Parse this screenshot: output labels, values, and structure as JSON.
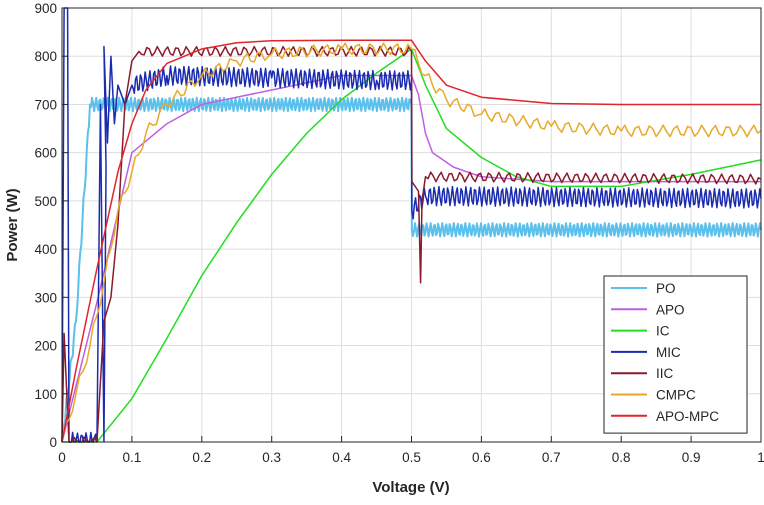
{
  "chart_data": {
    "type": "line",
    "title": "",
    "xlabel": "Voltage (V)",
    "ylabel": "Power (W)",
    "xlim": [
      0,
      1
    ],
    "ylim": [
      0,
      900
    ],
    "x_ticks": [
      "0",
      "0.1",
      "0.2",
      "0.3",
      "0.4",
      "0.5",
      "0.6",
      "0.7",
      "0.8",
      "0.9",
      "1"
    ],
    "y_ticks": [
      "0",
      "100",
      "200",
      "300",
      "400",
      "500",
      "600",
      "700",
      "800",
      "900"
    ],
    "grid": true,
    "legend_position": "bottom-right",
    "series": [
      {
        "name": "PO",
        "color": "#5bc0eb",
        "oscillation": {
          "amplitude": 14,
          "period": 0.006
        },
        "points": [
          [
            0,
            0
          ],
          [
            0.02,
            250
          ],
          [
            0.04,
            700
          ],
          [
            0.5,
            700
          ],
          [
            0.5005,
            440
          ],
          [
            1,
            440
          ]
        ]
      },
      {
        "name": "APO",
        "color": "#bf5fe0",
        "points": [
          [
            0,
            0
          ],
          [
            0.05,
            290
          ],
          [
            0.1,
            600
          ],
          [
            0.15,
            660
          ],
          [
            0.2,
            700
          ],
          [
            0.3,
            730
          ],
          [
            0.4,
            760
          ],
          [
            0.5,
            760
          ],
          [
            0.51,
            720
          ],
          [
            0.52,
            640
          ],
          [
            0.53,
            600
          ],
          [
            0.56,
            570
          ],
          [
            0.6,
            550
          ],
          [
            0.7,
            540
          ],
          [
            1,
            540
          ]
        ]
      },
      {
        "name": "IC",
        "color": "#22dd22",
        "points": [
          [
            0,
            0
          ],
          [
            0.05,
            0
          ],
          [
            0.1,
            90
          ],
          [
            0.15,
            215
          ],
          [
            0.2,
            345
          ],
          [
            0.25,
            455
          ],
          [
            0.3,
            555
          ],
          [
            0.35,
            640
          ],
          [
            0.4,
            710
          ],
          [
            0.45,
            765
          ],
          [
            0.5,
            815
          ],
          [
            0.52,
            740
          ],
          [
            0.55,
            650
          ],
          [
            0.6,
            590
          ],
          [
            0.65,
            550
          ],
          [
            0.7,
            530
          ],
          [
            0.8,
            530
          ],
          [
            0.9,
            555
          ],
          [
            1,
            585
          ]
        ]
      },
      {
        "name": "MIC",
        "color": "#1a2bb0",
        "oscillation": {
          "amplitude": 20,
          "period": 0.007
        },
        "points": [
          [
            0,
            0
          ],
          [
            0.003,
            900
          ],
          [
            0.008,
            900
          ],
          [
            0.01,
            0
          ],
          [
            0.05,
            0
          ],
          [
            0.055,
            700
          ],
          [
            0.06,
            0
          ],
          [
            0.063,
            570
          ],
          [
            0.06,
            820
          ],
          [
            0.065,
            620
          ],
          [
            0.07,
            800
          ],
          [
            0.075,
            660
          ],
          [
            0.08,
            740
          ],
          [
            0.09,
            700
          ],
          [
            0.1,
            740
          ],
          [
            0.15,
            760
          ],
          [
            0.3,
            755
          ],
          [
            0.45,
            750
          ],
          [
            0.5,
            750
          ],
          [
            0.5005,
            480
          ],
          [
            0.52,
            510
          ],
          [
            1,
            505
          ]
        ]
      },
      {
        "name": "IIC",
        "color": "#8b1a2c",
        "oscillation": {
          "amplitude": 10,
          "period": 0.015
        },
        "points": [
          [
            0,
            0
          ],
          [
            0.003,
            225
          ],
          [
            0.01,
            0
          ],
          [
            0.05,
            0
          ],
          [
            0.06,
            250
          ],
          [
            0.07,
            300
          ],
          [
            0.08,
            450
          ],
          [
            0.09,
            700
          ],
          [
            0.1,
            790
          ],
          [
            0.11,
            810
          ],
          [
            0.5,
            810
          ],
          [
            0.5005,
            540
          ],
          [
            0.51,
            520
          ],
          [
            0.513,
            330
          ],
          [
            0.515,
            500
          ],
          [
            0.52,
            550
          ],
          [
            1,
            545
          ]
        ]
      },
      {
        "name": "CMPC",
        "color": "#e8a927",
        "oscillation": {
          "amplitude": 12,
          "period": 0.02
        },
        "points": [
          [
            0,
            0
          ],
          [
            0.02,
            100
          ],
          [
            0.04,
            200
          ],
          [
            0.06,
            330
          ],
          [
            0.08,
            480
          ],
          [
            0.1,
            560
          ],
          [
            0.12,
            640
          ],
          [
            0.15,
            700
          ],
          [
            0.2,
            760
          ],
          [
            0.25,
            790
          ],
          [
            0.3,
            805
          ],
          [
            0.4,
            815
          ],
          [
            0.5,
            815
          ],
          [
            0.52,
            760
          ],
          [
            0.55,
            710
          ],
          [
            0.6,
            680
          ],
          [
            0.7,
            655
          ],
          [
            0.8,
            645
          ],
          [
            1,
            645
          ]
        ]
      },
      {
        "name": "APO-MPC",
        "color": "#e0242b",
        "points": [
          [
            0,
            0
          ],
          [
            0.02,
            150
          ],
          [
            0.05,
            360
          ],
          [
            0.08,
            560
          ],
          [
            0.1,
            660
          ],
          [
            0.12,
            730
          ],
          [
            0.15,
            785
          ],
          [
            0.2,
            815
          ],
          [
            0.25,
            828
          ],
          [
            0.3,
            832
          ],
          [
            0.4,
            833
          ],
          [
            0.5,
            833
          ],
          [
            0.52,
            790
          ],
          [
            0.55,
            740
          ],
          [
            0.6,
            715
          ],
          [
            0.7,
            702
          ],
          [
            0.8,
            700
          ],
          [
            1,
            700
          ]
        ]
      }
    ]
  }
}
